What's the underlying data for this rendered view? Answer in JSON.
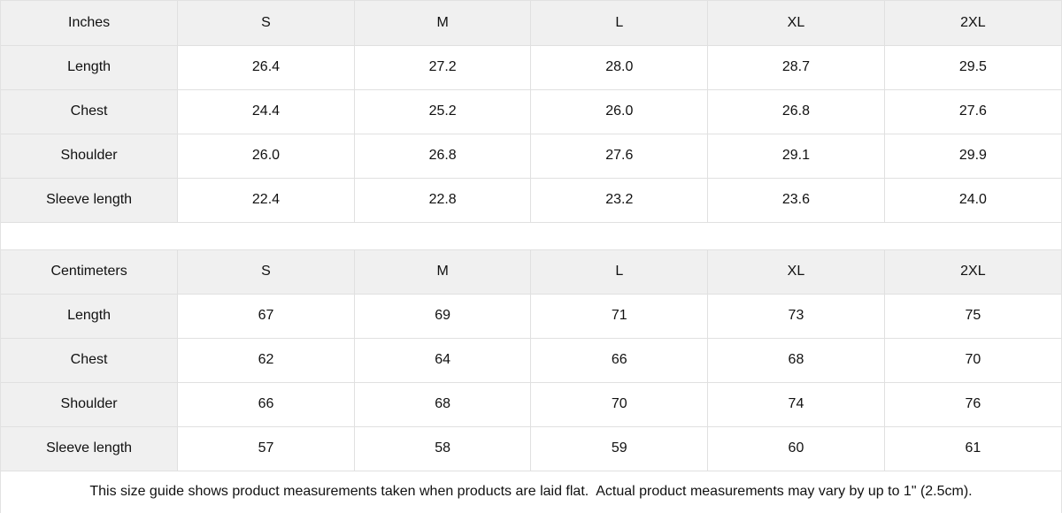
{
  "colors": {
    "header_bg": "#f0f0f0",
    "border": "#e0e0e0",
    "cell_bg": "#ffffff",
    "text": "#111111"
  },
  "tables": [
    {
      "unit_label": "Inches",
      "columns": [
        "S",
        "M",
        "L",
        "XL",
        "2XL"
      ],
      "rows": [
        {
          "label": "Length",
          "values": [
            "26.4",
            "27.2",
            "28.0",
            "28.7",
            "29.5"
          ]
        },
        {
          "label": "Chest",
          "values": [
            "24.4",
            "25.2",
            "26.0",
            "26.8",
            "27.6"
          ]
        },
        {
          "label": "Shoulder",
          "values": [
            "26.0",
            "26.8",
            "27.6",
            "29.1",
            "29.9"
          ]
        },
        {
          "label": "Sleeve length",
          "values": [
            "22.4",
            "22.8",
            "23.2",
            "23.6",
            "24.0"
          ]
        }
      ]
    },
    {
      "unit_label": "Centimeters",
      "columns": [
        "S",
        "M",
        "L",
        "XL",
        "2XL"
      ],
      "rows": [
        {
          "label": "Length",
          "values": [
            "67",
            "69",
            "71",
            "73",
            "75"
          ]
        },
        {
          "label": "Chest",
          "values": [
            "62",
            "64",
            "66",
            "68",
            "70"
          ]
        },
        {
          "label": "Shoulder",
          "values": [
            "66",
            "68",
            "70",
            "74",
            "76"
          ]
        },
        {
          "label": "Sleeve length",
          "values": [
            "57",
            "58",
            "59",
            "60",
            "61"
          ]
        }
      ]
    }
  ],
  "footer": {
    "note": "This size guide shows product measurements taken when products are laid flat.  Actual product measurements may vary by up to 1\" (2.5cm)."
  }
}
